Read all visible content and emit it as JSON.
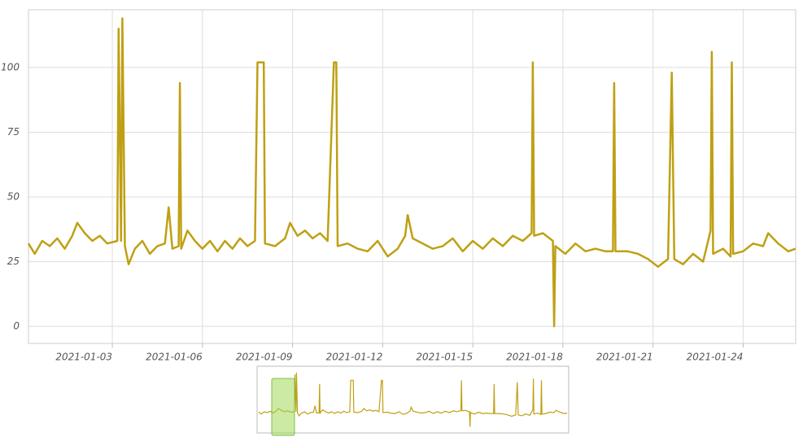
{
  "chart_data": {
    "type": "line",
    "color": "#bfa014",
    "grid": true,
    "x": [
      "2020-12-31T05:00",
      "2020-12-31T10:00",
      "2020-12-31T16:00",
      "2020-12-31T22:00",
      "2021-01-01T04:00",
      "2021-01-01T10:00",
      "2021-01-01T16:00",
      "2021-01-01T20:00",
      "2021-01-02T02:00",
      "2021-01-02T08:00",
      "2021-01-02T14:00",
      "2021-01-02T20:00",
      "2021-01-03T04:00",
      "2021-01-03T05:00",
      "2021-01-03T07:00",
      "2021-01-03T08:00",
      "2021-01-03T10:00",
      "2021-01-03T13:00",
      "2021-01-03T18:00",
      "2021-01-04T00:00",
      "2021-01-04T06:00",
      "2021-01-04T12:00",
      "2021-01-04T18:00",
      "2021-01-04T21:00",
      "2021-01-05T00:00",
      "2021-01-05T05:00",
      "2021-01-05T06:00",
      "2021-01-05T07:00",
      "2021-01-05T12:00",
      "2021-01-05T18:00",
      "2021-01-06T00:00",
      "2021-01-06T06:00",
      "2021-01-06T12:00",
      "2021-01-06T18:00",
      "2021-01-07T00:00",
      "2021-01-07T06:00",
      "2021-01-07T12:00",
      "2021-01-07T18:00",
      "2021-01-07T20:00",
      "2021-01-08T01:00",
      "2021-01-08T02:00",
      "2021-01-08T10:00",
      "2021-01-08T18:00",
      "2021-01-08T22:00",
      "2021-01-09T04:00",
      "2021-01-09T10:00",
      "2021-01-09T16:00",
      "2021-01-09T22:00",
      "2021-01-10T04:00",
      "2021-01-10T09:00",
      "2021-01-10T11:00",
      "2021-01-10T12:00",
      "2021-01-10T20:00",
      "2021-01-11T04:00",
      "2021-01-11T12:00",
      "2021-01-11T20:00",
      "2021-01-12T04:00",
      "2021-01-12T12:00",
      "2021-01-12T18:00",
      "2021-01-12T20:00",
      "2021-01-13T00:00",
      "2021-01-13T08:00",
      "2021-01-13T16:00",
      "2021-01-14T00:00",
      "2021-01-14T08:00",
      "2021-01-14T16:00",
      "2021-01-15T00:00",
      "2021-01-15T08:00",
      "2021-01-15T16:00",
      "2021-01-16T00:00",
      "2021-01-16T08:00",
      "2021-01-16T16:00",
      "2021-01-16T23:00",
      "2021-01-17T00:00",
      "2021-01-17T01:00",
      "2021-01-17T08:00",
      "2021-01-17T16:00",
      "2021-01-17T17:00",
      "2021-01-17T18:00",
      "2021-01-18T02:00",
      "2021-01-18T10:00",
      "2021-01-18T18:00",
      "2021-01-19T02:00",
      "2021-01-19T10:00",
      "2021-01-19T16:00",
      "2021-01-19T17:00",
      "2021-01-19T18:00",
      "2021-01-20T04:00",
      "2021-01-20T12:00",
      "2021-01-20T20:00",
      "2021-01-21T04:00",
      "2021-01-21T12:00",
      "2021-01-21T15:00",
      "2021-01-21T17:00",
      "2021-01-22T00:00",
      "2021-01-22T08:00",
      "2021-01-22T16:00",
      "2021-01-22T22:00",
      "2021-01-22T23:00",
      "2021-01-23T00:00",
      "2021-01-23T08:00",
      "2021-01-23T14:00",
      "2021-01-23T15:00",
      "2021-01-23T16:00",
      "2021-01-24T00:00",
      "2021-01-24T08:00",
      "2021-01-24T16:00",
      "2021-01-24T20:00",
      "2021-01-25T04:00",
      "2021-01-25T12:00",
      "2021-01-25T18:00"
    ],
    "values": [
      32,
      28,
      33,
      31,
      34,
      30,
      35,
      40,
      36,
      33,
      35,
      32,
      33,
      115,
      33,
      119,
      31,
      24,
      30,
      33,
      28,
      31,
      32,
      46,
      30,
      31,
      94,
      30,
      37,
      33,
      30,
      33,
      29,
      33,
      30,
      34,
      31,
      33,
      102,
      102,
      32,
      31,
      34,
      40,
      35,
      37,
      34,
      36,
      33,
      102,
      102,
      31,
      32,
      30,
      29,
      33,
      27,
      30,
      35,
      43,
      34,
      32,
      30,
      31,
      34,
      29,
      33,
      30,
      34,
      31,
      35,
      33,
      36,
      102,
      35,
      36,
      33,
      0,
      31,
      28,
      32,
      29,
      30,
      29,
      29,
      94,
      29,
      29,
      28,
      26,
      23,
      26,
      98,
      26,
      24,
      28,
      25,
      37,
      106,
      28,
      30,
      27,
      102,
      28,
      29,
      32,
      31,
      36,
      32,
      29,
      30
    ],
    "xlim": [
      "2020-12-31T05:00",
      "2021-01-25T18:00"
    ],
    "xticks": [
      "2021-01-03",
      "2021-01-06",
      "2021-01-09",
      "2021-01-12",
      "2021-01-15",
      "2021-01-18",
      "2021-01-21",
      "2021-01-24"
    ],
    "ylim": [
      -6.6,
      122.3
    ],
    "yticks": [
      0,
      25,
      50,
      75,
      100
    ]
  }
}
